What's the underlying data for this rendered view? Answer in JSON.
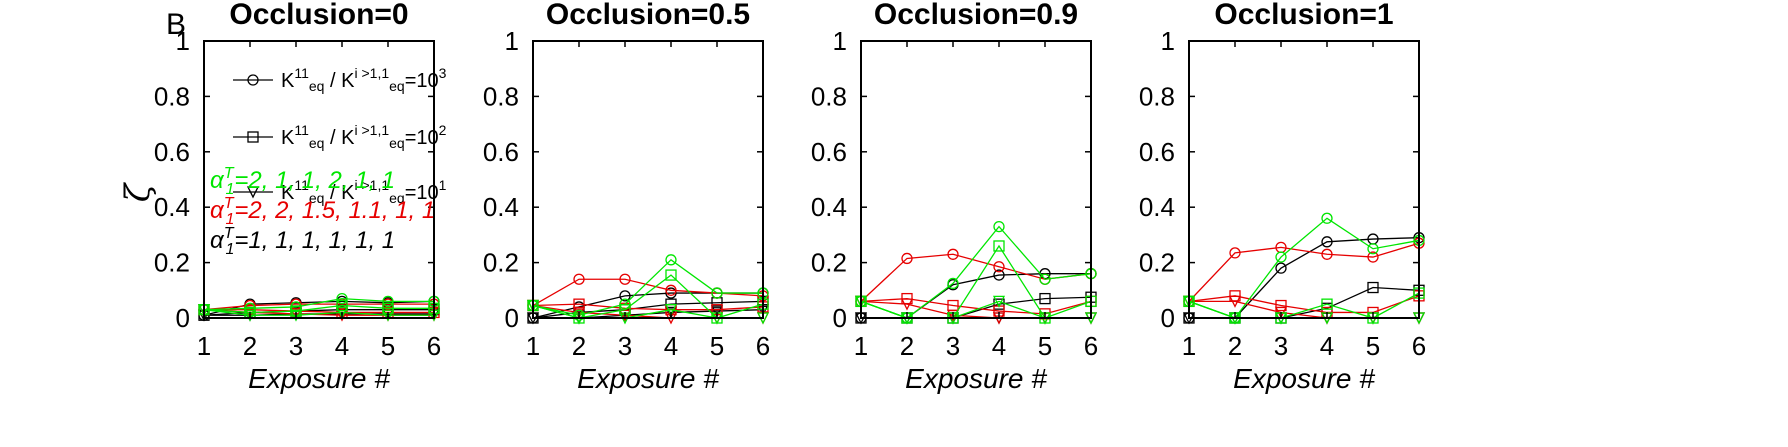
{
  "figure": {
    "panel_letter": "B",
    "ylabel": "ζ",
    "xlabel": "Exposure #"
  },
  "legend": [
    {
      "marker": "circle",
      "K_main": "K",
      "K_main_sup": "11",
      "K_main_sub": "eq",
      "sep": " / ",
      "K_other": "K",
      "K_other_sup": "i >1,1",
      "K_other_sub": "eq",
      "value": "=10",
      "value_sup": "3"
    },
    {
      "marker": "square",
      "K_main": "K",
      "K_main_sup": "11",
      "K_main_sub": "eq",
      "sep": " / ",
      "K_other": "K",
      "K_other_sup": "i >1,1",
      "K_other_sub": "eq",
      "value": "=10",
      "value_sup": "2"
    },
    {
      "marker": "triangle",
      "K_main": "K",
      "K_main_sup": "11",
      "K_main_sub": "eq",
      "sep": " / ",
      "K_other": "K",
      "K_other_sup": "i >1,1",
      "K_other_sub": "eq",
      "value": "=10",
      "value_sup": "1"
    }
  ],
  "annotations": [
    {
      "alpha": "α",
      "sup": "T",
      "sub": "1",
      "text": "=2, 1, 1, 2, 1, 1",
      "color": "#00e600"
    },
    {
      "alpha": "α",
      "sup": "T",
      "sub": "1",
      "text": "=2, 2, 1.5, 1.1, 1, 1",
      "color": "#e60000"
    },
    {
      "alpha": "α",
      "sup": "T",
      "sub": "1",
      "text": "=1, 1, 1, 1, 1, 1",
      "color": "#000000"
    }
  ],
  "colors": {
    "green": "#00e600",
    "red": "#e60000",
    "black": "#000000"
  },
  "chart_data": [
    {
      "type": "line",
      "title": "Occlusion=0",
      "x": [
        1,
        2,
        3,
        4,
        5,
        6
      ],
      "xlim": [
        1,
        6
      ],
      "ylim": [
        0,
        1
      ],
      "xticks": [
        "1",
        "2",
        "3",
        "4",
        "5",
        "6"
      ],
      "yticks": [
        "0",
        "0.2",
        "0.4",
        "0.6",
        "0.8",
        "1"
      ],
      "series": [
        {
          "color": "black",
          "marker": "circle",
          "values": [
            0.01,
            0.05,
            0.055,
            0.06,
            0.055,
            0.06
          ]
        },
        {
          "color": "black",
          "marker": "square",
          "values": [
            0.01,
            0.02,
            0.025,
            0.03,
            0.03,
            0.03
          ]
        },
        {
          "color": "black",
          "marker": "triangle",
          "values": [
            0.01,
            0.01,
            0.015,
            0.015,
            0.015,
            0.015
          ]
        },
        {
          "color": "red",
          "marker": "circle",
          "values": [
            0.03,
            0.045,
            0.05,
            0.05,
            0.05,
            0.05
          ]
        },
        {
          "color": "red",
          "marker": "square",
          "values": [
            0.03,
            0.03,
            0.025,
            0.02,
            0.02,
            0.02
          ]
        },
        {
          "color": "red",
          "marker": "triangle",
          "values": [
            0.03,
            0.02,
            0.015,
            0.01,
            0.01,
            0.01
          ]
        },
        {
          "color": "green",
          "marker": "circle",
          "values": [
            0.03,
            0.035,
            0.04,
            0.07,
            0.06,
            0.06
          ]
        },
        {
          "color": "green",
          "marker": "square",
          "values": [
            0.03,
            0.02,
            0.025,
            0.045,
            0.035,
            0.035
          ]
        },
        {
          "color": "green",
          "marker": "triangle",
          "values": [
            0.03,
            0.01,
            0.01,
            0.02,
            0.01,
            0.01
          ]
        }
      ]
    },
    {
      "type": "line",
      "title": "Occlusion=0.5",
      "x": [
        1,
        2,
        3,
        4,
        5,
        6
      ],
      "xlim": [
        1,
        6
      ],
      "ylim": [
        0,
        1
      ],
      "xticks": [
        "1",
        "2",
        "3",
        "4",
        "5",
        "6"
      ],
      "yticks": [
        "0",
        "0.2",
        "0.4",
        "0.6",
        "0.8",
        "1"
      ],
      "series": [
        {
          "color": "black",
          "marker": "circle",
          "values": [
            0.0,
            0.04,
            0.08,
            0.09,
            0.09,
            0.09
          ]
        },
        {
          "color": "black",
          "marker": "square",
          "values": [
            0.0,
            0.02,
            0.03,
            0.05,
            0.055,
            0.06
          ]
        },
        {
          "color": "black",
          "marker": "triangle",
          "values": [
            0.0,
            0.0,
            0.01,
            0.02,
            0.025,
            0.03
          ]
        },
        {
          "color": "red",
          "marker": "circle",
          "values": [
            0.045,
            0.14,
            0.14,
            0.1,
            0.09,
            0.08
          ]
        },
        {
          "color": "red",
          "marker": "square",
          "values": [
            0.045,
            0.05,
            0.035,
            0.03,
            0.03,
            0.04
          ]
        },
        {
          "color": "red",
          "marker": "triangle",
          "values": [
            0.045,
            0.02,
            0.01,
            0.0,
            0.0,
            0.0
          ]
        },
        {
          "color": "green",
          "marker": "circle",
          "values": [
            0.045,
            0.01,
            0.05,
            0.21,
            0.09,
            0.09
          ]
        },
        {
          "color": "green",
          "marker": "square",
          "values": [
            0.045,
            0.0,
            0.03,
            0.155,
            0.0,
            0.05
          ]
        },
        {
          "color": "green",
          "marker": "triangle",
          "values": [
            0.045,
            0.0,
            0.0,
            0.03,
            0.0,
            0.0
          ]
        }
      ]
    },
    {
      "type": "line",
      "title": "Occlusion=0.9",
      "x": [
        1,
        2,
        3,
        4,
        5,
        6
      ],
      "xlim": [
        1,
        6
      ],
      "ylim": [
        0,
        1
      ],
      "xticks": [
        "1",
        "2",
        "3",
        "4",
        "5",
        "6"
      ],
      "yticks": [
        "0",
        "0.2",
        "0.4",
        "0.6",
        "0.8",
        "1"
      ],
      "series": [
        {
          "color": "black",
          "marker": "circle",
          "values": [
            0.0,
            0.0,
            0.12,
            0.155,
            0.16,
            0.16
          ]
        },
        {
          "color": "black",
          "marker": "square",
          "values": [
            0.0,
            0.0,
            0.0,
            0.05,
            0.07,
            0.075
          ]
        },
        {
          "color": "black",
          "marker": "triangle",
          "values": [
            0.0,
            0.0,
            0.0,
            0.0,
            0.0,
            0.0
          ]
        },
        {
          "color": "red",
          "marker": "circle",
          "values": [
            0.06,
            0.215,
            0.23,
            0.185,
            0.14,
            0.16
          ]
        },
        {
          "color": "red",
          "marker": "square",
          "values": [
            0.06,
            0.07,
            0.045,
            0.025,
            0.015,
            0.06
          ]
        },
        {
          "color": "red",
          "marker": "triangle",
          "values": [
            0.06,
            0.05,
            0.01,
            0.0,
            0.0,
            0.0
          ]
        },
        {
          "color": "green",
          "marker": "circle",
          "values": [
            0.06,
            0.0,
            0.125,
            0.33,
            0.14,
            0.16
          ]
        },
        {
          "color": "green",
          "marker": "square",
          "values": [
            0.06,
            0.0,
            0.0,
            0.26,
            0.0,
            0.06
          ]
        },
        {
          "color": "green",
          "marker": "triangle",
          "values": [
            0.06,
            0.0,
            0.0,
            0.06,
            0.0,
            0.0
          ]
        }
      ]
    },
    {
      "type": "line",
      "title": "Occlusion=1",
      "x": [
        1,
        2,
        3,
        4,
        5,
        6
      ],
      "xlim": [
        1,
        6
      ],
      "ylim": [
        0,
        1
      ],
      "xticks": [
        "1",
        "2",
        "3",
        "4",
        "5",
        "6"
      ],
      "yticks": [
        "0",
        "0.2",
        "0.4",
        "0.6",
        "0.8",
        "1"
      ],
      "series": [
        {
          "color": "black",
          "marker": "circle",
          "values": [
            0.0,
            0.0,
            0.18,
            0.275,
            0.285,
            0.29
          ]
        },
        {
          "color": "black",
          "marker": "square",
          "values": [
            0.0,
            0.0,
            0.0,
            0.035,
            0.11,
            0.1
          ]
        },
        {
          "color": "black",
          "marker": "triangle",
          "values": [
            0.0,
            0.0,
            0.0,
            0.0,
            0.0,
            0.0
          ]
        },
        {
          "color": "red",
          "marker": "circle",
          "values": [
            0.06,
            0.235,
            0.255,
            0.23,
            0.22,
            0.27
          ]
        },
        {
          "color": "red",
          "marker": "square",
          "values": [
            0.06,
            0.08,
            0.045,
            0.02,
            0.02,
            0.08
          ]
        },
        {
          "color": "red",
          "marker": "triangle",
          "values": [
            0.06,
            0.06,
            0.02,
            0.0,
            0.0,
            0.0
          ]
        },
        {
          "color": "green",
          "marker": "circle",
          "values": [
            0.06,
            0.0,
            0.22,
            0.36,
            0.25,
            0.28
          ]
        },
        {
          "color": "green",
          "marker": "square",
          "values": [
            0.06,
            0.0,
            0.0,
            0.05,
            0.0,
            0.09
          ]
        },
        {
          "color": "green",
          "marker": "triangle",
          "values": [
            0.06,
            0.0,
            0.0,
            0.0,
            0.0,
            0.0
          ]
        }
      ]
    }
  ]
}
